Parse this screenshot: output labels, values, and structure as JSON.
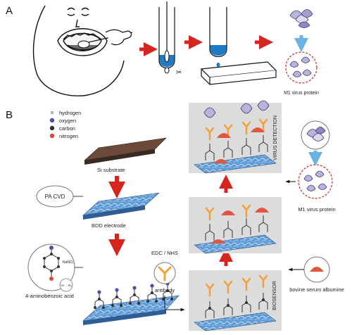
{
  "panels": {
    "a": "A",
    "b": "B"
  },
  "legend": {
    "hydrogen": "hydrogen",
    "oxygen": "oxygen",
    "carbon": "carbon",
    "nitrogen": "nitrogen"
  },
  "labels": {
    "m1_top": "M1 virus protein",
    "si_substrate": "Si substrate",
    "pa_cvd": "PA CVD",
    "bdd_electrode": "BDD electrode",
    "aminobenzoic": "4-aminobenzoic acid",
    "nano2": "NaNO₂",
    "reduction": "+e⁻, -N₂",
    "edc_nhs": "EDC / NHS",
    "antibody": "antibody",
    "virus_detection": "VIRUS DETECTION",
    "m1_right": "M1 virus protein",
    "bsa": "bovine serum albumine",
    "biosensor": "BIOSENSOR"
  },
  "colors": {
    "arrow_red": "#d6241f",
    "legend_hydrogen": "#c9c9d6",
    "legend_oxygen": "#4b4fa8",
    "legend_carbon": "#333333",
    "legend_nitrogen": "#e0473b",
    "electrode_blue": "#6fa8dc",
    "virus_protein": "#b9b4dc",
    "bsa_red": "#e4553f",
    "antibody_orange": "#f2a03a"
  }
}
